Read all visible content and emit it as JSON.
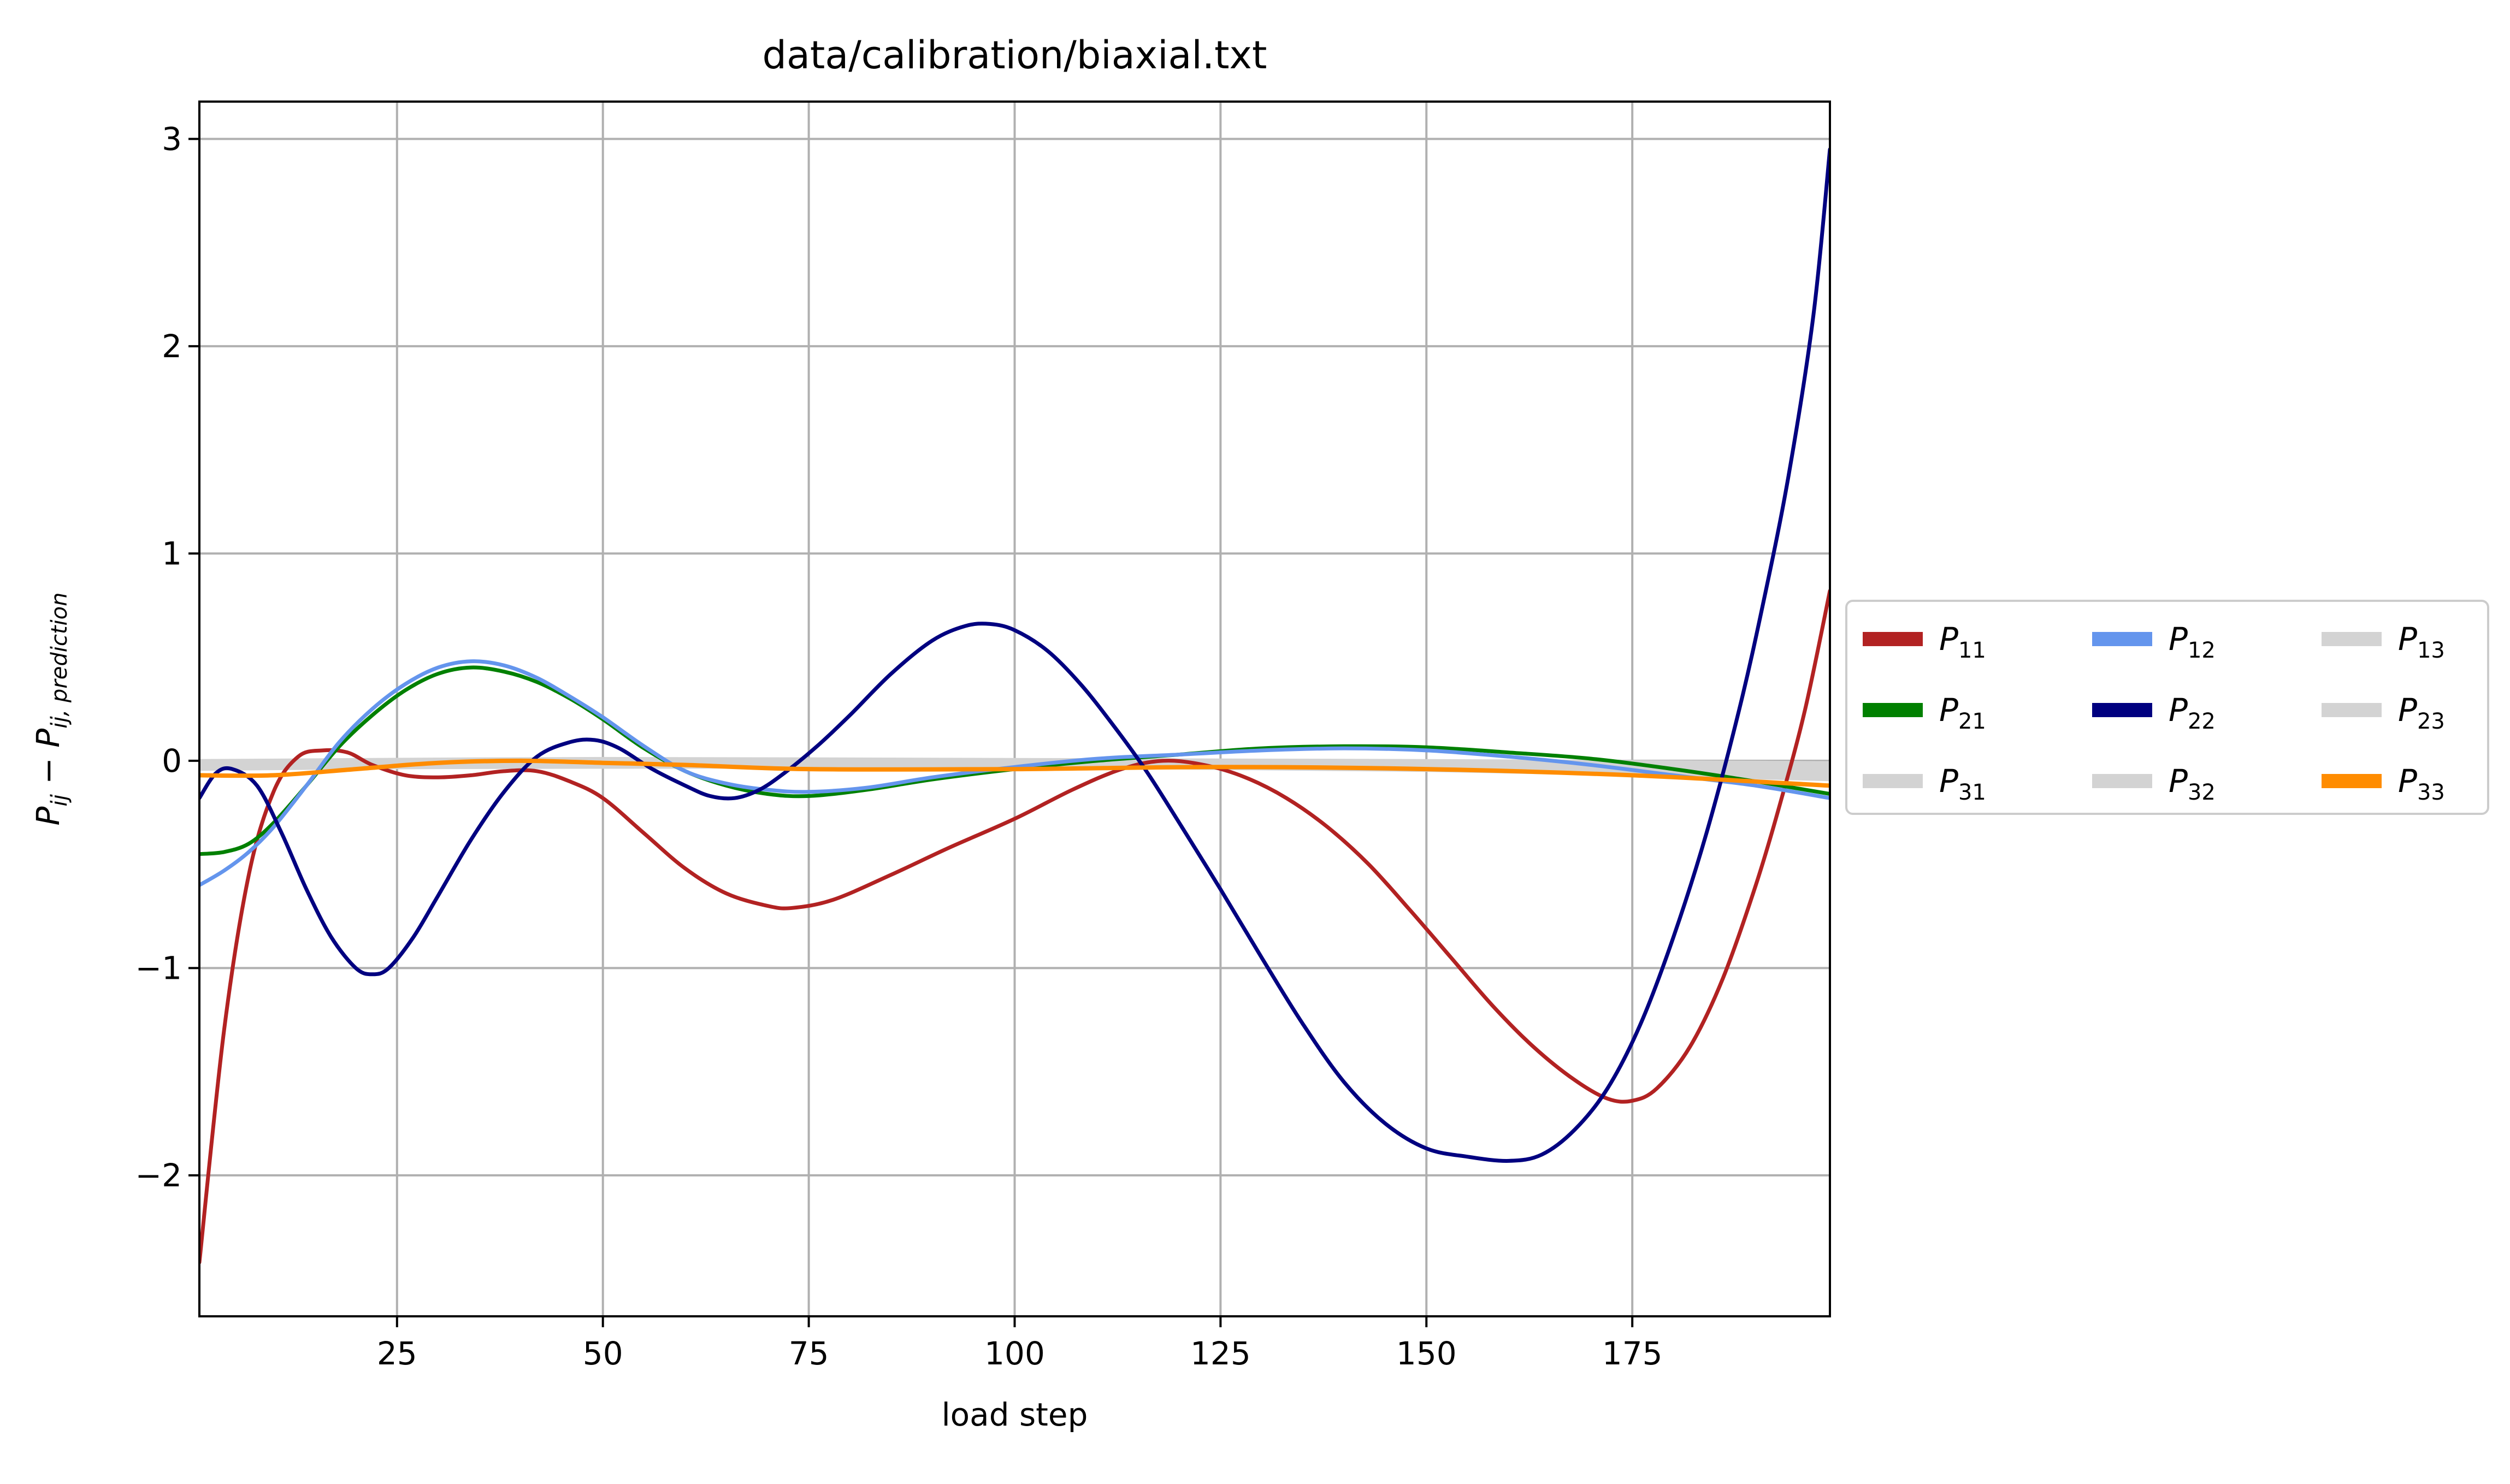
{
  "chart_data": {
    "type": "line",
    "title": "data/calibration/biaxial.txt",
    "xlabel": "load step",
    "ylabel": {
      "main": "P",
      "sub1": "ij",
      "minus": " − ",
      "main2": "P",
      "sub2": "ij, prediction"
    },
    "xlim": [
      1,
      199
    ],
    "ylim": [
      -2.68,
      3.18
    ],
    "xticks": [
      25,
      50,
      75,
      100,
      125,
      150,
      175
    ],
    "xtick_labels": [
      "25",
      "50",
      "75",
      "100",
      "125",
      "150",
      "175"
    ],
    "yticks": [
      -2,
      -1,
      0,
      1,
      2,
      3
    ],
    "ytick_labels": [
      "−2",
      "−1",
      "0",
      "1",
      "2",
      "3"
    ],
    "grid": true,
    "legend": {
      "placement": "right-outside",
      "columns": 3
    },
    "series": [
      {
        "name": "P",
        "sub": "11",
        "color": "#b22222",
        "width": 7,
        "points": [
          [
            1,
            -2.42
          ],
          [
            4,
            -1.3
          ],
          [
            7,
            -0.55
          ],
          [
            10,
            -0.15
          ],
          [
            13,
            0.02
          ],
          [
            16,
            0.05
          ],
          [
            19,
            0.04
          ],
          [
            22,
            -0.02
          ],
          [
            26,
            -0.07
          ],
          [
            30,
            -0.08
          ],
          [
            34,
            -0.07
          ],
          [
            38,
            -0.05
          ],
          [
            42,
            -0.05
          ],
          [
            46,
            -0.1
          ],
          [
            50,
            -0.18
          ],
          [
            55,
            -0.35
          ],
          [
            60,
            -0.52
          ],
          [
            65,
            -0.64
          ],
          [
            70,
            -0.7
          ],
          [
            73,
            -0.71
          ],
          [
            78,
            -0.67
          ],
          [
            85,
            -0.55
          ],
          [
            92,
            -0.42
          ],
          [
            100,
            -0.28
          ],
          [
            107,
            -0.14
          ],
          [
            113,
            -0.04
          ],
          [
            118,
            0.0
          ],
          [
            123,
            -0.02
          ],
          [
            128,
            -0.08
          ],
          [
            133,
            -0.18
          ],
          [
            138,
            -0.32
          ],
          [
            143,
            -0.5
          ],
          [
            148,
            -0.72
          ],
          [
            153,
            -0.95
          ],
          [
            158,
            -1.18
          ],
          [
            163,
            -1.38
          ],
          [
            168,
            -1.54
          ],
          [
            172,
            -1.63
          ],
          [
            175,
            -1.64
          ],
          [
            178,
            -1.58
          ],
          [
            182,
            -1.38
          ],
          [
            186,
            -1.05
          ],
          [
            190,
            -0.6
          ],
          [
            193,
            -0.2
          ],
          [
            196,
            0.25
          ],
          [
            199,
            0.82
          ]
        ]
      },
      {
        "name": "P",
        "sub": "21",
        "color": "#008000",
        "width": 7,
        "points": [
          [
            1,
            -0.45
          ],
          [
            4,
            -0.44
          ],
          [
            7,
            -0.4
          ],
          [
            10,
            -0.3
          ],
          [
            14,
            -0.12
          ],
          [
            18,
            0.07
          ],
          [
            22,
            0.22
          ],
          [
            26,
            0.34
          ],
          [
            30,
            0.42
          ],
          [
            34,
            0.45
          ],
          [
            38,
            0.43
          ],
          [
            42,
            0.38
          ],
          [
            46,
            0.3
          ],
          [
            50,
            0.2
          ],
          [
            55,
            0.06
          ],
          [
            60,
            -0.05
          ],
          [
            65,
            -0.12
          ],
          [
            70,
            -0.16
          ],
          [
            75,
            -0.17
          ],
          [
            82,
            -0.14
          ],
          [
            90,
            -0.09
          ],
          [
            100,
            -0.04
          ],
          [
            110,
            0.0
          ],
          [
            120,
            0.03
          ],
          [
            130,
            0.06
          ],
          [
            140,
            0.07
          ],
          [
            150,
            0.065
          ],
          [
            160,
            0.04
          ],
          [
            170,
            0.01
          ],
          [
            180,
            -0.04
          ],
          [
            190,
            -0.1
          ],
          [
            199,
            -0.16
          ]
        ]
      },
      {
        "name": "P",
        "sub": "31",
        "color": "#d3d3d3",
        "width": 14,
        "points": [
          [
            1,
            -0.02
          ],
          [
            50,
            -0.01
          ],
          [
            100,
            -0.01
          ],
          [
            150,
            -0.02
          ],
          [
            199,
            -0.04
          ]
        ]
      },
      {
        "name": "P",
        "sub": "12",
        "color": "#6495ed",
        "width": 7,
        "points": [
          [
            1,
            -0.6
          ],
          [
            4,
            -0.53
          ],
          [
            7,
            -0.44
          ],
          [
            10,
            -0.32
          ],
          [
            14,
            -0.12
          ],
          [
            18,
            0.09
          ],
          [
            22,
            0.25
          ],
          [
            26,
            0.37
          ],
          [
            30,
            0.45
          ],
          [
            34,
            0.48
          ],
          [
            38,
            0.46
          ],
          [
            42,
            0.4
          ],
          [
            46,
            0.31
          ],
          [
            50,
            0.21
          ],
          [
            55,
            0.07
          ],
          [
            60,
            -0.05
          ],
          [
            65,
            -0.11
          ],
          [
            70,
            -0.14
          ],
          [
            75,
            -0.15
          ],
          [
            82,
            -0.13
          ],
          [
            90,
            -0.08
          ],
          [
            100,
            -0.03
          ],
          [
            110,
            0.01
          ],
          [
            120,
            0.03
          ],
          [
            130,
            0.05
          ],
          [
            140,
            0.06
          ],
          [
            150,
            0.05
          ],
          [
            160,
            0.02
          ],
          [
            170,
            -0.02
          ],
          [
            180,
            -0.07
          ],
          [
            190,
            -0.12
          ],
          [
            199,
            -0.18
          ]
        ]
      },
      {
        "name": "P",
        "sub": "22",
        "color": "#000080",
        "width": 7,
        "points": [
          [
            1,
            -0.18
          ],
          [
            3,
            -0.06
          ],
          [
            5,
            -0.04
          ],
          [
            8,
            -0.12
          ],
          [
            11,
            -0.35
          ],
          [
            14,
            -0.62
          ],
          [
            17,
            -0.85
          ],
          [
            20,
            -1.0
          ],
          [
            22,
            -1.03
          ],
          [
            24,
            -1.0
          ],
          [
            27,
            -0.85
          ],
          [
            30,
            -0.65
          ],
          [
            34,
            -0.38
          ],
          [
            38,
            -0.15
          ],
          [
            42,
            0.02
          ],
          [
            46,
            0.09
          ],
          [
            49,
            0.1
          ],
          [
            52,
            0.06
          ],
          [
            56,
            -0.04
          ],
          [
            60,
            -0.12
          ],
          [
            63,
            -0.17
          ],
          [
            66,
            -0.18
          ],
          [
            69,
            -0.14
          ],
          [
            72,
            -0.06
          ],
          [
            76,
            0.07
          ],
          [
            80,
            0.22
          ],
          [
            85,
            0.42
          ],
          [
            90,
            0.58
          ],
          [
            94,
            0.65
          ],
          [
            97,
            0.66
          ],
          [
            100,
            0.63
          ],
          [
            104,
            0.53
          ],
          [
            108,
            0.37
          ],
          [
            112,
            0.17
          ],
          [
            116,
            -0.05
          ],
          [
            120,
            -0.3
          ],
          [
            125,
            -0.62
          ],
          [
            130,
            -0.95
          ],
          [
            135,
            -1.27
          ],
          [
            140,
            -1.55
          ],
          [
            145,
            -1.75
          ],
          [
            150,
            -1.87
          ],
          [
            155,
            -1.91
          ],
          [
            160,
            -1.93
          ],
          [
            164,
            -1.9
          ],
          [
            168,
            -1.78
          ],
          [
            172,
            -1.58
          ],
          [
            176,
            -1.27
          ],
          [
            180,
            -0.85
          ],
          [
            184,
            -0.35
          ],
          [
            188,
            0.25
          ],
          [
            191,
            0.78
          ],
          [
            194,
            1.38
          ],
          [
            197,
            2.15
          ],
          [
            199,
            2.95
          ]
        ]
      },
      {
        "name": "P",
        "sub": "32",
        "color": "#d3d3d3",
        "width": 14,
        "points": [
          [
            1,
            -0.03
          ],
          [
            50,
            -0.015
          ],
          [
            100,
            -0.015
          ],
          [
            150,
            -0.03
          ],
          [
            199,
            -0.06
          ]
        ]
      },
      {
        "name": "P",
        "sub": "13",
        "color": "#d3d3d3",
        "width": 14,
        "points": [
          [
            1,
            -0.01
          ],
          [
            50,
            0.0
          ],
          [
            100,
            -0.005
          ],
          [
            150,
            -0.01
          ],
          [
            199,
            -0.02
          ]
        ]
      },
      {
        "name": "P",
        "sub": "23",
        "color": "#d3d3d3",
        "width": 14,
        "points": [
          [
            1,
            -0.025
          ],
          [
            50,
            -0.02
          ],
          [
            100,
            -0.02
          ],
          [
            150,
            -0.035
          ],
          [
            199,
            -0.08
          ]
        ]
      },
      {
        "name": "P",
        "sub": "33",
        "color": "#ff8c00",
        "width": 8,
        "points": [
          [
            1,
            -0.07
          ],
          [
            10,
            -0.07
          ],
          [
            20,
            -0.04
          ],
          [
            30,
            -0.01
          ],
          [
            40,
            0.0
          ],
          [
            50,
            -0.01
          ],
          [
            60,
            -0.02
          ],
          [
            75,
            -0.04
          ],
          [
            100,
            -0.04
          ],
          [
            125,
            -0.03
          ],
          [
            150,
            -0.04
          ],
          [
            175,
            -0.07
          ],
          [
            199,
            -0.12
          ]
        ]
      }
    ]
  }
}
